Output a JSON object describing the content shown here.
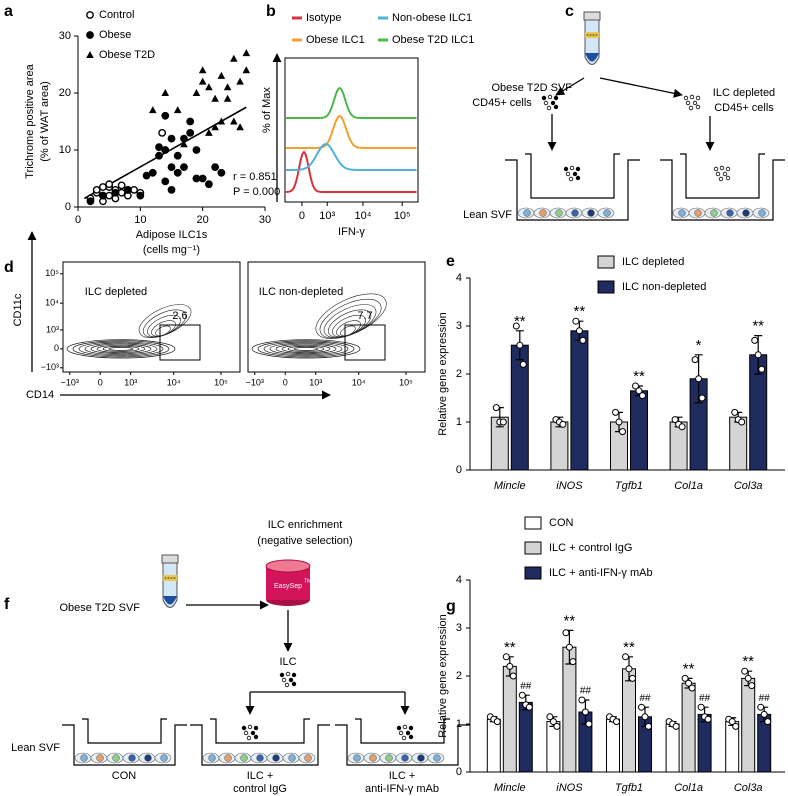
{
  "chart_data": [
    {
      "type": "scatter",
      "label": "a",
      "xlabel": [
        "Adipose ILC1s",
        "(cells mg⁻¹)"
      ],
      "ylabel": [
        "Trichrome positive area",
        "(% of WAT area)"
      ],
      "xlim": [
        0,
        30
      ],
      "ylim": [
        0,
        30
      ],
      "xticks": [
        0,
        10,
        20,
        30
      ],
      "yticks": [
        0,
        10,
        20,
        30
      ],
      "series": [
        {
          "name": "Control",
          "marker": "open-circle",
          "x": [
            2,
            3,
            3,
            4,
            4,
            5,
            5,
            5,
            6,
            6,
            7,
            7,
            8,
            8,
            9,
            10,
            4,
            13.5
          ],
          "y": [
            1.5,
            2.5,
            3,
            1,
            3.5,
            2,
            3.5,
            4,
            1.5,
            3,
            2.5,
            3.8,
            2,
            3,
            3,
            2.5,
            2,
            13
          ]
        },
        {
          "name": "Obese",
          "marker": "circle",
          "x": [
            2,
            4,
            6,
            8,
            10,
            11,
            12,
            13,
            13,
            14,
            14,
            15,
            15,
            16,
            16,
            17,
            17,
            18,
            18,
            19,
            20,
            21,
            22,
            23,
            15,
            14,
            19
          ],
          "y": [
            1,
            2,
            2.5,
            3,
            2,
            5.5,
            6,
            9,
            10.5,
            4.5,
            10,
            7,
            12,
            6,
            9,
            12,
            7,
            13,
            15,
            10,
            5,
            4,
            7,
            6,
            3,
            16,
            5
          ]
        },
        {
          "name": "Obese T2D",
          "marker": "triangle",
          "x": [
            12,
            14,
            16,
            17,
            19,
            20,
            20,
            21,
            22,
            22,
            23,
            24,
            24,
            25,
            25,
            26,
            26,
            27,
            27,
            21,
            23
          ],
          "y": [
            17,
            20,
            17,
            11,
            20,
            24,
            22,
            21,
            14,
            19,
            23,
            19,
            21,
            26,
            15,
            14,
            22,
            27,
            24,
            13,
            15
          ]
        }
      ],
      "fit": {
        "x": [
          1,
          27
        ],
        "y": [
          1.5,
          17.5
        ]
      },
      "annotations": [
        "r = 0.851",
        "P = 0.000"
      ]
    },
    {
      "type": "flow_histogram",
      "label": "b",
      "xlabel": "IFN-γ",
      "ylabel": "% of Max",
      "xlim": [
        -500,
        250000
      ],
      "xticks": [
        0,
        {
          "value": 1000,
          "label": "10³"
        },
        {
          "value": 10000,
          "label": "10⁴"
        },
        {
          "value": 100000,
          "label": "10⁵"
        }
      ],
      "series": [
        {
          "name": "Isotype",
          "color": "#d7333c"
        },
        {
          "name": "Obese ILC1",
          "color": "#f0a030"
        },
        {
          "name": "Non-obese ILC1",
          "color": "#4fb3d9"
        },
        {
          "name": "Obese T2D ILC1",
          "color": "#4cb848"
        }
      ]
    },
    {
      "type": "flow_contour",
      "label": "d",
      "xlabel": "CD14",
      "ylabel": "CD11c",
      "xlim": [
        -1500,
        250000
      ],
      "ylim": [
        -1500,
        250000
      ],
      "xticks": [
        {
          "value": -1000,
          "label": "−10³"
        },
        0,
        {
          "value": 1000,
          "label": "10³"
        },
        {
          "value": 10000,
          "label": "10⁴"
        },
        {
          "value": 100000,
          "label": "10⁵"
        }
      ],
      "yticks": [
        {
          "value": -1000,
          "label": "−10³"
        },
        0,
        {
          "value": 1000,
          "label": "10³"
        },
        {
          "value": 10000,
          "label": "10⁴"
        },
        {
          "value": 100000,
          "label": "10⁵"
        }
      ],
      "plots": [
        {
          "title": "ILC depleted",
          "gate": 2.6
        },
        {
          "title": "ILC non-depleted",
          "gate": 7.7
        }
      ]
    },
    {
      "type": "bar",
      "label": "e",
      "ylabel": "Relative gene expression",
      "categories": [
        "Mincle",
        "iNOS",
        "Tgfb1",
        "Col1a",
        "Col3a"
      ],
      "ylim": [
        0,
        4
      ],
      "yticks": [
        0,
        1,
        2,
        3,
        4
      ],
      "series": [
        {
          "name": "ILC depleted",
          "color": "#d4d4d4",
          "values": [
            1.1,
            1.0,
            1.0,
            1.0,
            1.1
          ],
          "errors": [
            0.2,
            0.1,
            0.2,
            0.1,
            0.1
          ],
          "points": [
            [
              1.3,
              1.0,
              1.0
            ],
            [
              1.05,
              1.0,
              0.95
            ],
            [
              1.2,
              1.0,
              0.8
            ],
            [
              1.05,
              0.95,
              0.9
            ],
            [
              1.2,
              1.05,
              1.0
            ]
          ]
        },
        {
          "name": "ILC non-depleted",
          "color": "#1f2a5e",
          "values": [
            2.6,
            2.9,
            1.65,
            1.9,
            2.4
          ],
          "errors": [
            0.3,
            0.2,
            0.1,
            0.5,
            0.4
          ],
          "points": [
            [
              3.0,
              2.6,
              2.2
            ],
            [
              3.1,
              2.9,
              2.7
            ],
            [
              1.75,
              1.65,
              1.55
            ],
            [
              2.3,
              1.9,
              1.5
            ],
            [
              2.7,
              2.4,
              2.1
            ]
          ],
          "sig": [
            "**",
            "**",
            "**",
            "*",
            "**"
          ]
        }
      ]
    },
    {
      "type": "bar",
      "label": "g",
      "ylabel": "Relative gene expression",
      "categories": [
        "Mincle",
        "iNOS",
        "Tgfb1",
        "Col1a",
        "Col3a"
      ],
      "ylim": [
        0,
        4
      ],
      "yticks": [
        0,
        1,
        2,
        3,
        4
      ],
      "series": [
        {
          "name": "CON",
          "color": "#ffffff",
          "values": [
            1.1,
            1.05,
            1.1,
            1.0,
            1.05
          ],
          "errors": [
            0.05,
            0.1,
            0.05,
            0.05,
            0.08
          ],
          "points": [
            [
              1.15,
              1.1,
              1.05
            ],
            [
              1.15,
              1.05,
              0.95
            ],
            [
              1.15,
              1.1,
              1.05
            ],
            [
              1.05,
              1.0,
              0.95
            ],
            [
              1.1,
              1.05,
              0.95
            ]
          ]
        },
        {
          "name": "ILC + control IgG",
          "color": "#d4d4d4",
          "values": [
            2.2,
            2.6,
            2.15,
            1.85,
            1.95
          ],
          "errors": [
            0.2,
            0.35,
            0.25,
            0.1,
            0.15
          ],
          "points": [
            [
              2.4,
              2.2,
              2.0
            ],
            [
              2.9,
              2.6,
              2.3
            ],
            [
              2.4,
              2.15,
              1.95
            ],
            [
              1.95,
              1.85,
              1.75
            ],
            [
              2.1,
              1.95,
              1.8
            ]
          ],
          "sig": [
            "**",
            "**",
            "**",
            "**",
            "**"
          ]
        },
        {
          "name": "ILC + anti-IFN-γ mAb",
          "color": "#1f2a5e",
          "values": [
            1.45,
            1.25,
            1.15,
            1.2,
            1.2
          ],
          "errors": [
            0.15,
            0.25,
            0.2,
            0.15,
            0.15
          ],
          "points": [
            [
              1.6,
              1.4,
              1.35
            ],
            [
              1.5,
              1.25,
              1.0
            ],
            [
              1.35,
              1.15,
              0.95
            ],
            [
              1.35,
              1.15,
              1.1
            ],
            [
              1.35,
              1.2,
              1.05
            ]
          ],
          "sig": [
            "##",
            "##",
            "##",
            "##",
            "##"
          ]
        }
      ]
    }
  ],
  "diagram_c": {
    "label": "c",
    "source": "Obese T2D SVF",
    "left": "CD45+ cells",
    "right": [
      "ILC depleted",
      "CD45+ cells"
    ],
    "well": "Lean SVF"
  },
  "diagram_f": {
    "label": "f",
    "source": "Obese T2D SVF",
    "step": [
      "ILC enrichment",
      "(negative selection)"
    ],
    "kit": "EasySep",
    "kit_mark": "TM",
    "product": "ILC",
    "well": "Lean SVF",
    "conditions": [
      [
        "CON"
      ],
      [
        "ILC +",
        "control IgG"
      ],
      [
        "ILC +",
        "anti-IFN-γ mAb"
      ]
    ]
  }
}
